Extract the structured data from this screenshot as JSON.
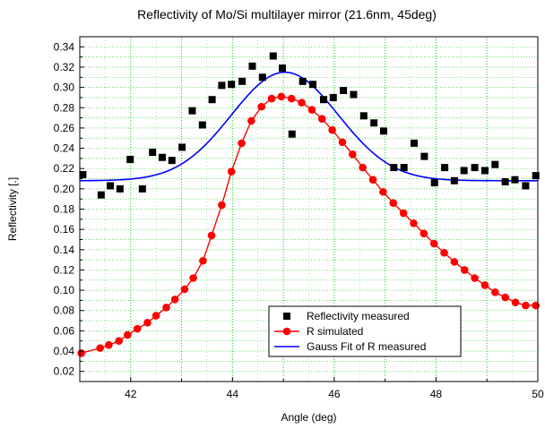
{
  "chart_data": {
    "type": "scatter",
    "title": "Reflectivity of Mo/Si multilayer mirror (21.6nm, 45deg)",
    "xlabel": "Angle (deg)",
    "ylabel": "Reflectivity [.]",
    "xlim": [
      41,
      50
    ],
    "ylim": [
      0.01,
      0.35
    ],
    "x_ticks": [
      42,
      44,
      46,
      48,
      50
    ],
    "y_ticks": [
      0.02,
      0.04,
      0.06,
      0.08,
      0.1,
      0.12,
      0.14,
      0.16,
      0.18,
      0.2,
      0.22,
      0.24,
      0.26,
      0.28,
      0.3,
      0.32,
      0.34
    ],
    "x_tick_labels": [
      "42",
      "44",
      "46",
      "48",
      "50"
    ],
    "y_tick_labels": [
      "0.02",
      "0.04",
      "0.06",
      "0.08",
      "0.10",
      "0.12",
      "0.14",
      "0.16",
      "0.18",
      "0.20",
      "0.22",
      "0.24",
      "0.26",
      "0.28",
      "0.30",
      "0.32",
      "0.34"
    ],
    "grid": true,
    "legend_position": "bottom-right",
    "series": [
      {
        "name": "Reflectivity measured",
        "type": "scatter",
        "marker": "square",
        "color": "#000000",
        "x": [
          41.06,
          41.42,
          41.6,
          41.79,
          41.99,
          42.23,
          42.43,
          42.62,
          42.81,
          43.01,
          43.21,
          43.41,
          43.6,
          43.79,
          43.98,
          44.19,
          44.39,
          44.59,
          44.8,
          44.98,
          45.17,
          45.38,
          45.58,
          45.79,
          45.98,
          46.18,
          46.38,
          46.58,
          46.78,
          46.97,
          47.17,
          47.37,
          47.57,
          47.77,
          47.97,
          48.17,
          48.36,
          48.55,
          48.76,
          48.96,
          49.16,
          49.36,
          49.55,
          49.76,
          49.96
        ],
        "y": [
          0.214,
          0.194,
          0.203,
          0.2,
          0.229,
          0.2,
          0.236,
          0.231,
          0.228,
          0.241,
          0.277,
          0.263,
          0.288,
          0.302,
          0.303,
          0.306,
          0.321,
          0.31,
          0.331,
          0.319,
          0.254,
          0.306,
          0.303,
          0.288,
          0.29,
          0.297,
          0.293,
          0.272,
          0.265,
          0.257,
          0.221,
          0.221,
          0.245,
          0.232,
          0.206,
          0.221,
          0.208,
          0.218,
          0.221,
          0.218,
          0.224,
          0.207,
          0.209,
          0.203,
          0.213
        ]
      },
      {
        "name": "R simulated",
        "type": "line-markers",
        "marker": "circle",
        "color": "#ff0000",
        "x": [
          41.03,
          41.4,
          41.57,
          41.77,
          41.94,
          42.13,
          42.33,
          42.5,
          42.7,
          42.87,
          43.06,
          43.23,
          43.42,
          43.59,
          43.79,
          43.98,
          44.18,
          44.37,
          44.57,
          44.77,
          44.96,
          45.16,
          45.36,
          45.56,
          45.76,
          45.96,
          46.16,
          46.36,
          46.56,
          46.76,
          46.96,
          47.16,
          47.36,
          47.56,
          47.76,
          47.96,
          48.16,
          48.36,
          48.56,
          48.76,
          48.96,
          49.16,
          49.36,
          49.56,
          49.76,
          49.96
        ],
        "y": [
          0.038,
          0.043,
          0.046,
          0.05,
          0.056,
          0.062,
          0.068,
          0.075,
          0.083,
          0.091,
          0.101,
          0.112,
          0.129,
          0.154,
          0.184,
          0.217,
          0.245,
          0.267,
          0.281,
          0.289,
          0.291,
          0.289,
          0.285,
          0.278,
          0.269,
          0.258,
          0.246,
          0.234,
          0.221,
          0.209,
          0.197,
          0.186,
          0.176,
          0.166,
          0.156,
          0.146,
          0.137,
          0.128,
          0.12,
          0.112,
          0.105,
          0.098,
          0.093,
          0.088,
          0.085,
          0.085
        ]
      },
      {
        "name": "Gauss Fit of R measured",
        "type": "line",
        "color": "#0000ff",
        "model": "gauss",
        "y0": 0.208,
        "amplitude": 0.107,
        "center": 45.03,
        "sigma": 1.05
      }
    ]
  }
}
